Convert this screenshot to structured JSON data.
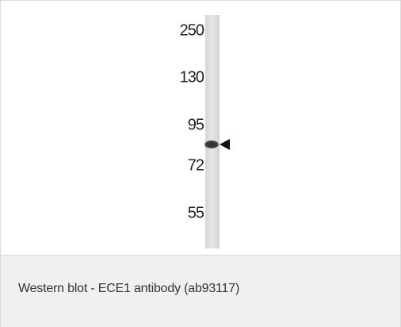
{
  "blot": {
    "markers": [
      250,
      130,
      95,
      72,
      55
    ]
  },
  "caption": "Western blot - ECE1 antibody (ab93117)"
}
